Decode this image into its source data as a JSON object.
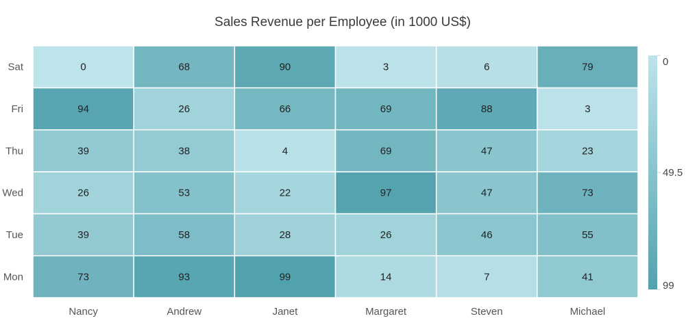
{
  "chart_data": {
    "type": "heatmap",
    "title": "Sales Revenue per Employee (in 1000 US$)",
    "x_categories": [
      "Nancy",
      "Andrew",
      "Janet",
      "Margaret",
      "Steven",
      "Michael"
    ],
    "y_categories": [
      "Mon",
      "Tue",
      "Wed",
      "Thu",
      "Fri",
      "Sat"
    ],
    "values": [
      [
        73,
        39,
        26,
        39,
        94,
        0
      ],
      [
        93,
        58,
        53,
        38,
        26,
        68
      ],
      [
        99,
        28,
        22,
        4,
        66,
        90
      ],
      [
        14,
        26,
        97,
        69,
        69,
        3
      ],
      [
        7,
        46,
        47,
        47,
        88,
        6
      ],
      [
        41,
        55,
        73,
        23,
        3,
        79
      ]
    ],
    "color_scale": {
      "min": 0,
      "max": 99,
      "min_color": "#bde4ea",
      "max_color": "#52a2ae",
      "tick_labels": [
        "0",
        "49.5",
        "99"
      ]
    },
    "legend_position": "right"
  }
}
